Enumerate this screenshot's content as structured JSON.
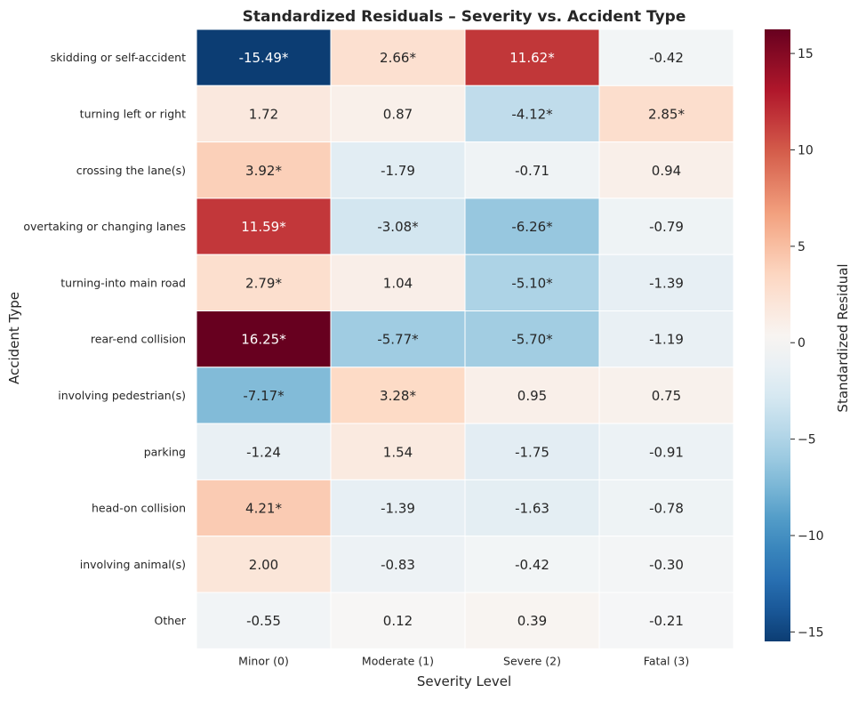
{
  "chart_data": {
    "type": "heatmap",
    "title": "Standardized Residuals – Severity vs. Accident Type",
    "xlabel": "Severity Level",
    "ylabel": "Accident Type",
    "x_categories": [
      "Minor (0)",
      "Moderate (1)",
      "Severe (2)",
      "Fatal (3)"
    ],
    "y_categories": [
      "skidding or self-accident",
      "turning left or right",
      "crossing the lane(s)",
      "overtaking or changing lanes",
      "turning-into main road",
      "rear-end collision",
      "involving pedestrian(s)",
      "parking",
      "head-on collision",
      "involving animal(s)",
      "Other"
    ],
    "values": [
      [
        -15.49,
        2.66,
        11.62,
        -0.42
      ],
      [
        1.72,
        0.87,
        -4.12,
        2.85
      ],
      [
        3.92,
        -1.79,
        -0.71,
        0.94
      ],
      [
        11.59,
        -3.08,
        -6.26,
        -0.79
      ],
      [
        2.79,
        1.04,
        -5.1,
        -1.39
      ],
      [
        16.25,
        -5.77,
        -5.7,
        -1.19
      ],
      [
        -7.17,
        3.28,
        0.95,
        0.75
      ],
      [
        -1.24,
        1.54,
        -1.75,
        -0.91
      ],
      [
        4.21,
        -1.39,
        -1.63,
        -0.78
      ],
      [
        2.0,
        -0.83,
        -0.42,
        -0.3
      ],
      [
        -0.55,
        0.12,
        0.39,
        -0.21
      ]
    ],
    "cell_labels": [
      [
        "-15.49*",
        "2.66*",
        "11.62*",
        "-0.42"
      ],
      [
        "1.72",
        "0.87",
        "-4.12*",
        "2.85*"
      ],
      [
        "3.92*",
        "-1.79",
        "-0.71",
        "0.94"
      ],
      [
        "11.59*",
        "-3.08*",
        "-6.26*",
        "-0.79"
      ],
      [
        "2.79*",
        "1.04",
        "-5.10*",
        "-1.39"
      ],
      [
        "16.25*",
        "-5.77*",
        "-5.70*",
        "-1.19"
      ],
      [
        "-7.17*",
        "3.28*",
        "0.95",
        "0.75"
      ],
      [
        "-1.24",
        "1.54",
        "-1.75",
        "-0.91"
      ],
      [
        "4.21*",
        "-1.39",
        "-1.63",
        "-0.78"
      ],
      [
        "2.00",
        "-0.83",
        "-0.42",
        "-0.30"
      ],
      [
        "-0.55",
        "0.12",
        "0.39",
        "-0.21"
      ]
    ],
    "colorbar": {
      "label": "Standardized Residual",
      "min": -15.49,
      "max": 16.25,
      "ticks": [
        15,
        10,
        5,
        0,
        -5,
        -10,
        -15
      ],
      "tick_labels": [
        "15",
        "10",
        "5",
        "0",
        "−5",
        "−10",
        "−15"
      ],
      "colormap": "RdBu_r"
    },
    "colors": {
      "negative_max": "#053061",
      "neutral": "#f7f7f7",
      "positive_max": "#67001f"
    },
    "grid": false,
    "legend": "colorbar-right"
  }
}
